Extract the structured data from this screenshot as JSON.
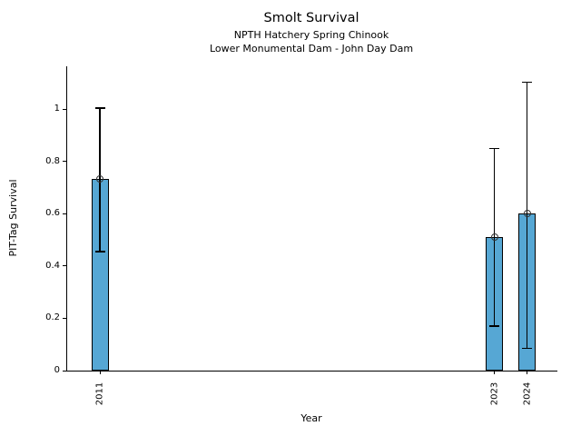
{
  "chart_data": {
    "type": "bar",
    "title": "Smolt Survival",
    "subtitle": [
      "NPTH Hatchery Spring Chinook",
      "Lower Monumental Dam - John Day Dam"
    ],
    "xlabel": "Year",
    "ylabel": "PIT-Tag Survival",
    "categories": [
      "2011",
      "2023",
      "2024"
    ],
    "x_numeric": [
      2011,
      2023,
      2024
    ],
    "values": [
      0.735,
      0.51,
      0.6
    ],
    "error_low": [
      0.455,
      0.17,
      0.085
    ],
    "error_high": [
      1.005,
      0.85,
      1.105
    ],
    "yticks": [
      0,
      0.2,
      0.4,
      0.6,
      0.8,
      1
    ],
    "ytick_labels": [
      "0",
      "0.2",
      "0.4",
      "0.6",
      "0.8",
      "1"
    ],
    "ylim": [
      0,
      1.165
    ],
    "xlim": [
      2010.0,
      2024.92
    ],
    "grid": false,
    "legend": null,
    "bar_color": "#56A7D4",
    "bar_edge_color": "#000000",
    "error_color": "#000000",
    "marker": "open-circle"
  }
}
